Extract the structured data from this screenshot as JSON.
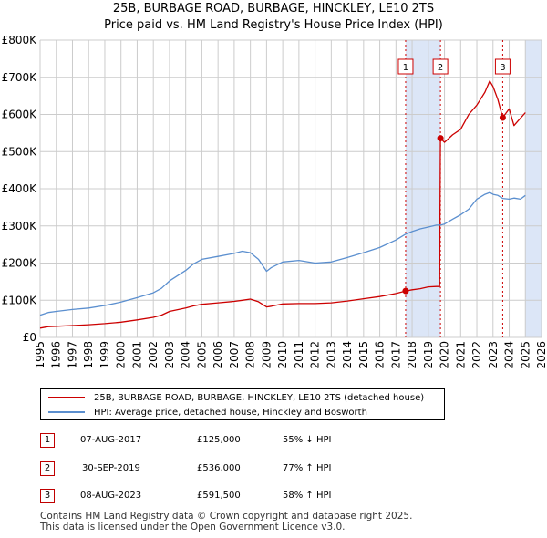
{
  "title_line1": "25B, BURBAGE ROAD, BURBAGE, HINCKLEY, LE10 2TS",
  "title_line2": "Price paid vs. HM Land Registry's House Price Index (HPI)",
  "legend": {
    "property": "25B, BURBAGE ROAD, BURBAGE, HINCKLEY, LE10 2TS (detached house)",
    "hpi": "HPI: Average price, detached house, Hinckley and Bosworth"
  },
  "sales": [
    {
      "num": "1",
      "date": "07-AUG-2017",
      "price": "£125,000",
      "hpi": "55% ↓ HPI",
      "year": 2017.6,
      "value": 125000
    },
    {
      "num": "2",
      "date": "30-SEP-2019",
      "price": "£536,000",
      "hpi": "77% ↑ HPI",
      "year": 2019.75,
      "value": 536000
    },
    {
      "num": "3",
      "date": "08-AUG-2023",
      "price": "£591,500",
      "hpi": "58% ↑ HPI",
      "year": 2023.6,
      "value": 591500
    }
  ],
  "footer": {
    "line1": "Contains HM Land Registry data © Crown copyright and database right 2025.",
    "line2": "This data is licensed under the Open Government Licence v3.0."
  },
  "colors": {
    "property": "#cc0000",
    "hpi": "#5b8fcf",
    "shade": "#dce6f7",
    "grid": "#cccccc"
  },
  "chart_data": {
    "type": "line",
    "xlabel": "",
    "ylabel": "",
    "xlim": [
      1995,
      2026
    ],
    "ylim": [
      0,
      800000
    ],
    "y_ticks": [
      0,
      100000,
      200000,
      300000,
      400000,
      500000,
      600000,
      700000,
      800000
    ],
    "y_tick_labels": [
      "£0",
      "£100K",
      "£200K",
      "£300K",
      "£400K",
      "£500K",
      "£600K",
      "£700K",
      "£800K"
    ],
    "x_ticks": [
      1995,
      1996,
      1997,
      1998,
      1999,
      2000,
      2001,
      2002,
      2003,
      2004,
      2005,
      2006,
      2007,
      2008,
      2009,
      2010,
      2011,
      2012,
      2013,
      2014,
      2015,
      2016,
      2017,
      2018,
      2019,
      2020,
      2021,
      2022,
      2023,
      2024,
      2025,
      2026
    ],
    "shaded_spans": [
      [
        2017.6,
        2019.75
      ],
      [
        2025.0,
        2026.0
      ]
    ],
    "series": [
      {
        "name": "25B, BURBAGE ROAD, BURBAGE, HINCKLEY, LE10 2TS (detached house)",
        "x": [
          1995.0,
          1995.5,
          1996.0,
          1997.0,
          1998.0,
          1999.0,
          2000.0,
          2001.0,
          2002.0,
          2002.5,
          2003.0,
          2004.0,
          2004.5,
          2005.0,
          2006.0,
          2007.0,
          2007.5,
          2008.0,
          2008.5,
          2009.0,
          2009.3,
          2010.0,
          2011.0,
          2012.0,
          2013.0,
          2014.0,
          2015.0,
          2016.0,
          2017.0,
          2017.6,
          2018.0,
          2018.5,
          2019.0,
          2019.5,
          2019.7,
          2019.75,
          2020.0,
          2020.5,
          2021.0,
          2021.5,
          2022.0,
          2022.5,
          2022.8,
          2023.0,
          2023.3,
          2023.6,
          2024.0,
          2024.3,
          2024.7,
          2025.0
        ],
        "values": [
          25000,
          29000,
          30000,
          32000,
          34000,
          37000,
          41000,
          47000,
          54000,
          60000,
          70000,
          79000,
          85000,
          89000,
          93000,
          97000,
          100000,
          103000,
          96000,
          82000,
          84000,
          90000,
          91000,
          91000,
          93000,
          98000,
          104000,
          110000,
          118000,
          125000,
          128000,
          131000,
          136000,
          137000,
          137000,
          536000,
          525000,
          545000,
          560000,
          600000,
          625000,
          660000,
          690000,
          675000,
          640000,
          591500,
          615000,
          570000,
          590000,
          605000
        ]
      },
      {
        "name": "HPI: Average price, detached house, Hinckley and Bosworth",
        "x": [
          1995.0,
          1995.5,
          1996.0,
          1997.0,
          1998.0,
          1999.0,
          2000.0,
          2001.0,
          2002.0,
          2002.5,
          2003.0,
          2004.0,
          2004.5,
          2005.0,
          2006.0,
          2007.0,
          2007.5,
          2008.0,
          2008.5,
          2009.0,
          2009.3,
          2010.0,
          2011.0,
          2012.0,
          2013.0,
          2014.0,
          2015.0,
          2016.0,
          2017.0,
          2017.6,
          2018.0,
          2018.5,
          2019.0,
          2019.5,
          2019.75,
          2020.0,
          2020.5,
          2021.0,
          2021.5,
          2022.0,
          2022.5,
          2022.8,
          2023.0,
          2023.3,
          2023.6,
          2024.0,
          2024.3,
          2024.7,
          2025.0
        ],
        "values": [
          60000,
          67000,
          70000,
          75000,
          79000,
          86000,
          95000,
          107000,
          120000,
          132000,
          152000,
          180000,
          198000,
          210000,
          218000,
          226000,
          232000,
          228000,
          210000,
          178000,
          188000,
          203000,
          207000,
          200000,
          203000,
          215000,
          228000,
          242000,
          262000,
          278000,
          285000,
          292000,
          297000,
          302000,
          302000,
          305000,
          318000,
          330000,
          345000,
          372000,
          385000,
          390000,
          385000,
          382000,
          374000,
          372000,
          375000,
          372000,
          382000
        ]
      }
    ]
  }
}
